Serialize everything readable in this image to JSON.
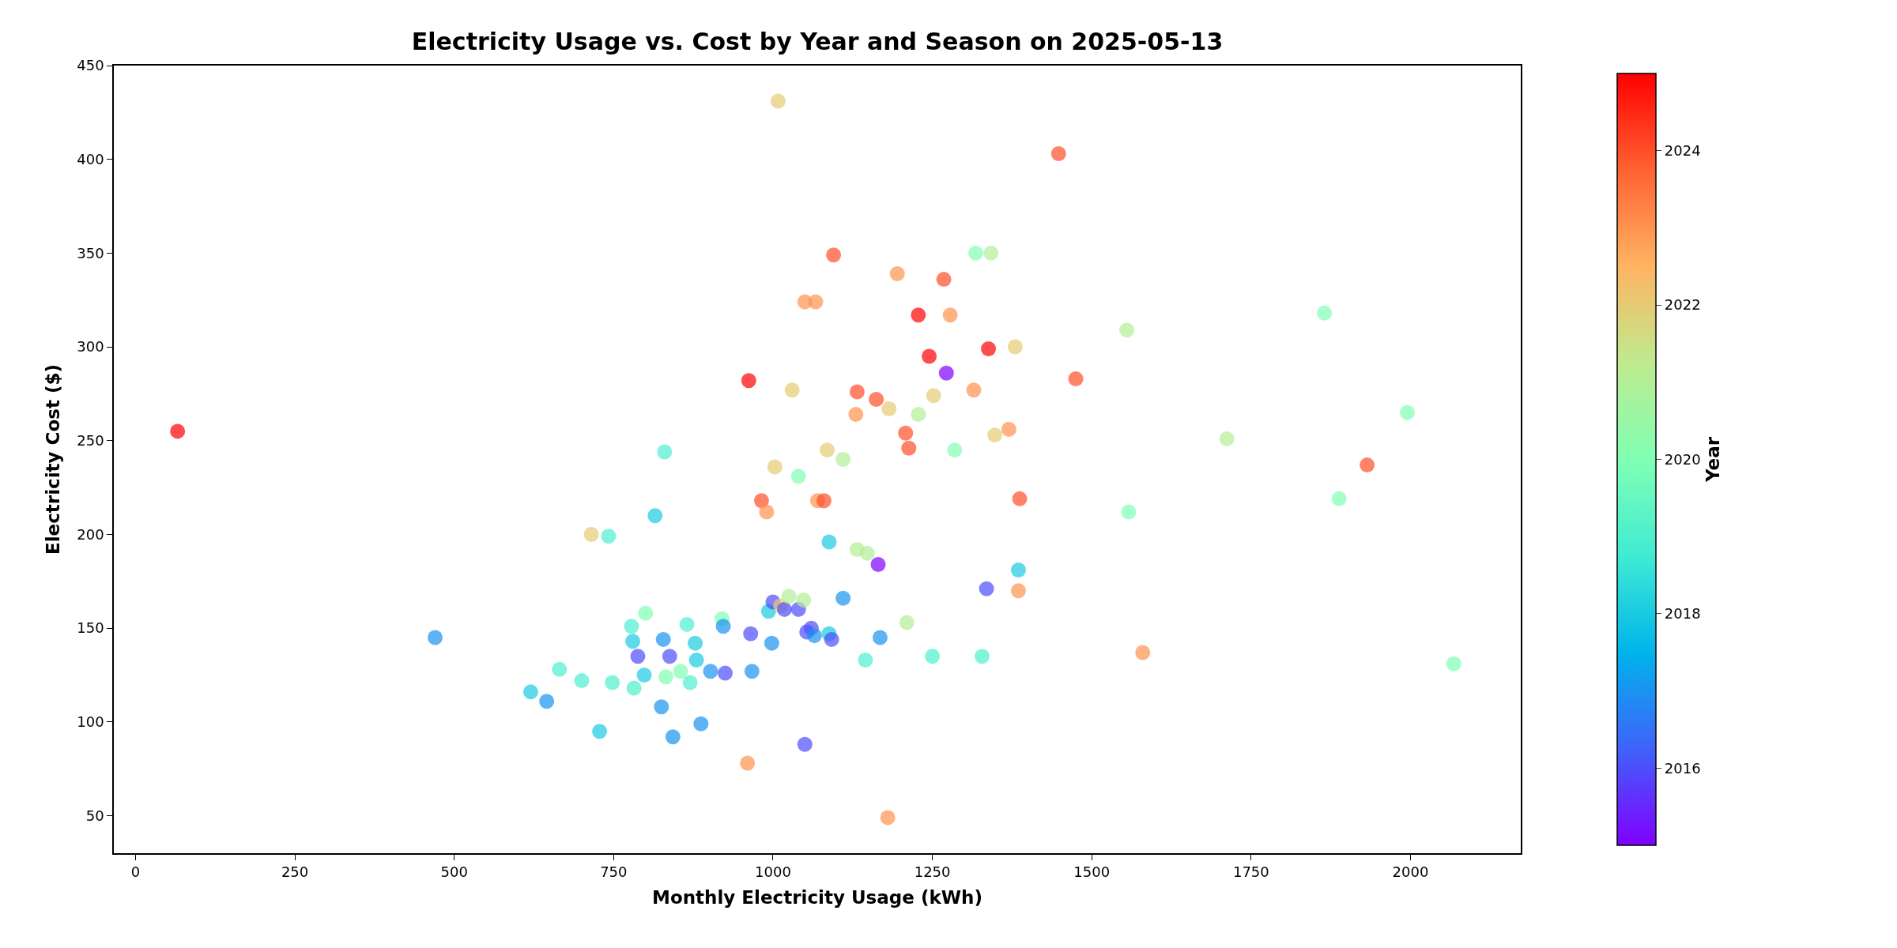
{
  "chart_data": {
    "type": "scatter",
    "title": "Electricity Usage vs. Cost by Year and Season on 2025-05-13",
    "xlabel": "Monthly Electricity Usage (kWh)",
    "ylabel": "Electricity Cost ($)",
    "clabel": "Year",
    "x": [
      66,
      470,
      620,
      645,
      665,
      700,
      715,
      728,
      742,
      748,
      778,
      780,
      782,
      788,
      798,
      800,
      815,
      825,
      828,
      830,
      832,
      838,
      843,
      855,
      865,
      870,
      878,
      880,
      887,
      902,
      920,
      922,
      925,
      960,
      962,
      965,
      967,
      982,
      990,
      993,
      998,
      1000,
      1003,
      1008,
      1012,
      1018,
      1025,
      1030,
      1040,
      1040,
      1048,
      1050,
      1050,
      1053,
      1060,
      1065,
      1067,
      1070,
      1080,
      1085,
      1088,
      1088,
      1092,
      1095,
      1110,
      1110,
      1130,
      1132,
      1132,
      1145,
      1148,
      1162,
      1165,
      1168,
      1180,
      1182,
      1195,
      1208,
      1210,
      1213,
      1228,
      1228,
      1245,
      1250,
      1252,
      1268,
      1272,
      1278,
      1285,
      1315,
      1318,
      1328,
      1335,
      1338,
      1342,
      1348,
      1370,
      1380,
      1385,
      1385,
      1387,
      1448,
      1475,
      1555,
      1558,
      1580,
      1712,
      1865,
      1888,
      1932,
      1995,
      2068
    ],
    "values": [
      255,
      145,
      116,
      111,
      128,
      122,
      200,
      95,
      199,
      121,
      151,
      143,
      118,
      135,
      125,
      158,
      210,
      108,
      144,
      244,
      124,
      135,
      92,
      127,
      152,
      121,
      142,
      133,
      99,
      127,
      155,
      151,
      126,
      78,
      282,
      147,
      127,
      218,
      212,
      159,
      142,
      164,
      236,
      431,
      162,
      160,
      167,
      277,
      231,
      160,
      165,
      324,
      88,
      148,
      150,
      146,
      324,
      218,
      218,
      245,
      147,
      196,
      144,
      349,
      240,
      166,
      264,
      276,
      192,
      133,
      190,
      272,
      184,
      145,
      49,
      267,
      339,
      254,
      153,
      246,
      317,
      264,
      295,
      135,
      274,
      336,
      286,
      317,
      245,
      277,
      350,
      135,
      171,
      299,
      350,
      253,
      256,
      300,
      181,
      170,
      219,
      403,
      283,
      309,
      212,
      137,
      251,
      318,
      219,
      237,
      265,
      131
    ],
    "cvalues": [
      2025,
      2017,
      2018,
      2017,
      2019,
      2019,
      2022,
      2018,
      2019,
      2019,
      2019,
      2018,
      2019,
      2016,
      2018,
      2020,
      2018,
      2017,
      2017,
      2019,
      2020,
      2016,
      2017,
      2020,
      2019,
      2019,
      2018,
      2018,
      2017,
      2017,
      2020,
      2017,
      2016,
      2023,
      2025,
      2016,
      2017,
      2024,
      2023,
      2018,
      2017,
      2016,
      2022,
      2022,
      2022,
      2016,
      2021,
      2022,
      2020,
      2016,
      2021,
      2023,
      2016,
      2016,
      2016,
      2017,
      2023,
      2023,
      2024,
      2022,
      2018,
      2018,
      2016,
      2024,
      2021,
      2017,
      2023,
      2024,
      2021,
      2019,
      2021,
      2024,
      2015,
      2017,
      2023,
      2022,
      2023,
      2024,
      2021,
      2024,
      2025,
      2021,
      2025,
      2019,
      2022,
      2024,
      2015,
      2023,
      2020,
      2023,
      2020,
      2019,
      2016,
      2025,
      2021,
      2022,
      2023,
      2022,
      2018,
      2023,
      2024,
      2024,
      2024,
      2021,
      2020,
      2023,
      2021,
      2020,
      2020,
      2024,
      2020,
      2020
    ],
    "xlim": [
      -34,
      2173
    ],
    "ylim": [
      30,
      450
    ],
    "xticks": [
      0,
      250,
      500,
      750,
      1000,
      1250,
      1500,
      1750,
      2000
    ],
    "yticks": [
      50,
      100,
      150,
      200,
      250,
      300,
      350,
      400,
      450
    ],
    "clim": [
      2015,
      2025
    ],
    "cticks": [
      2016,
      2018,
      2020,
      2022,
      2024
    ],
    "marker": "circle"
  }
}
